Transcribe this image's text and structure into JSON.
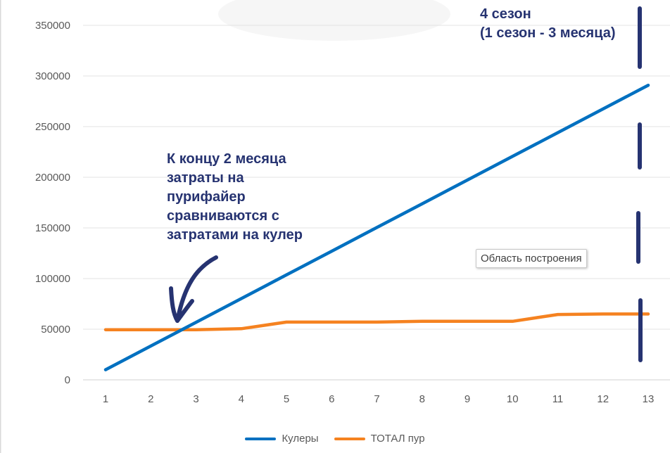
{
  "chart_data": {
    "type": "line",
    "x": [
      1,
      2,
      3,
      4,
      5,
      6,
      7,
      8,
      9,
      10,
      11,
      12,
      13
    ],
    "ylim": [
      0,
      375000
    ],
    "yticks": [
      0,
      50000,
      100000,
      150000,
      200000,
      250000,
      300000,
      350000
    ],
    "grid": true,
    "legend_position": "bottom",
    "series": [
      {
        "name": "Кулеры",
        "color": "#0070C0",
        "values": [
          10000,
          33400,
          56800,
          80200,
          103600,
          127000,
          150400,
          173800,
          197200,
          220600,
          244000,
          267400,
          290800
        ]
      },
      {
        "name": "ТОТАЛ пур",
        "color": "#F58220",
        "values": [
          49500,
          49500,
          49500,
          50500,
          57000,
          57000,
          57000,
          57800,
          57800,
          57800,
          64500,
          65000,
          65000
        ]
      }
    ]
  },
  "annotations": {
    "left_note": [
      "К концу 2 месяца",
      "затраты на",
      "пурифайер",
      "сравниваются с",
      "затратами на кулер"
    ],
    "right_note": [
      "4 сезон",
      "(1 сезон - 3 месяца)"
    ],
    "marker_color": "#263371"
  },
  "tooltip": {
    "text": "Область построения"
  }
}
